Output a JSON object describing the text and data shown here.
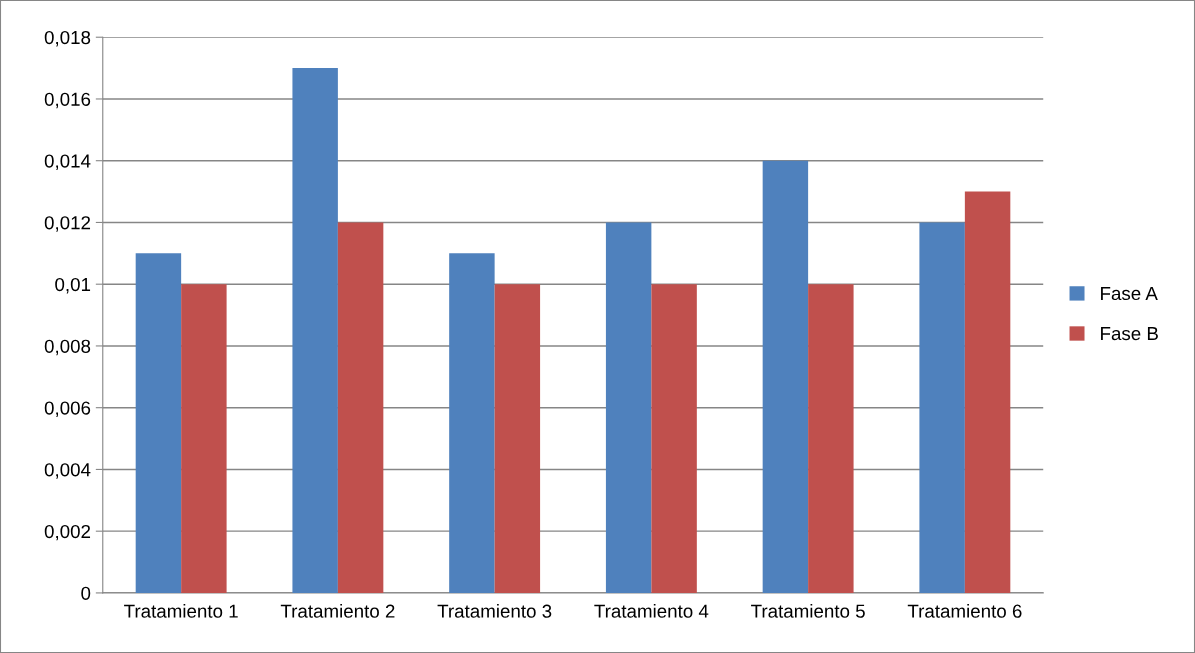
{
  "chart_data": {
    "type": "bar",
    "categories": [
      "Tratamiento 1",
      "Tratamiento 2",
      "Tratamiento 3",
      "Tratamiento 4",
      "Tratamiento 5",
      "Tratamiento 6"
    ],
    "series": [
      {
        "name": "Fase A",
        "color": "#4f81bd",
        "values": [
          0.011,
          0.017,
          0.011,
          0.012,
          0.014,
          0.012
        ]
      },
      {
        "name": "Fase B",
        "color": "#c0504d",
        "values": [
          0.01,
          0.012,
          0.01,
          0.01,
          0.01,
          0.013
        ]
      }
    ],
    "ylim": [
      0,
      0.018
    ],
    "yticks": [
      {
        "value": 0,
        "label": "0"
      },
      {
        "value": 0.002,
        "label": "0,002"
      },
      {
        "value": 0.004,
        "label": "0,004"
      },
      {
        "value": 0.006,
        "label": "0,006"
      },
      {
        "value": 0.008,
        "label": "0,008"
      },
      {
        "value": 0.01,
        "label": "0,01"
      },
      {
        "value": 0.012,
        "label": "0,012"
      },
      {
        "value": 0.014,
        "label": "0,014"
      },
      {
        "value": 0.016,
        "label": "0,016"
      },
      {
        "value": 0.018,
        "label": "0,018"
      }
    ],
    "grid": "y",
    "legend": "right"
  }
}
